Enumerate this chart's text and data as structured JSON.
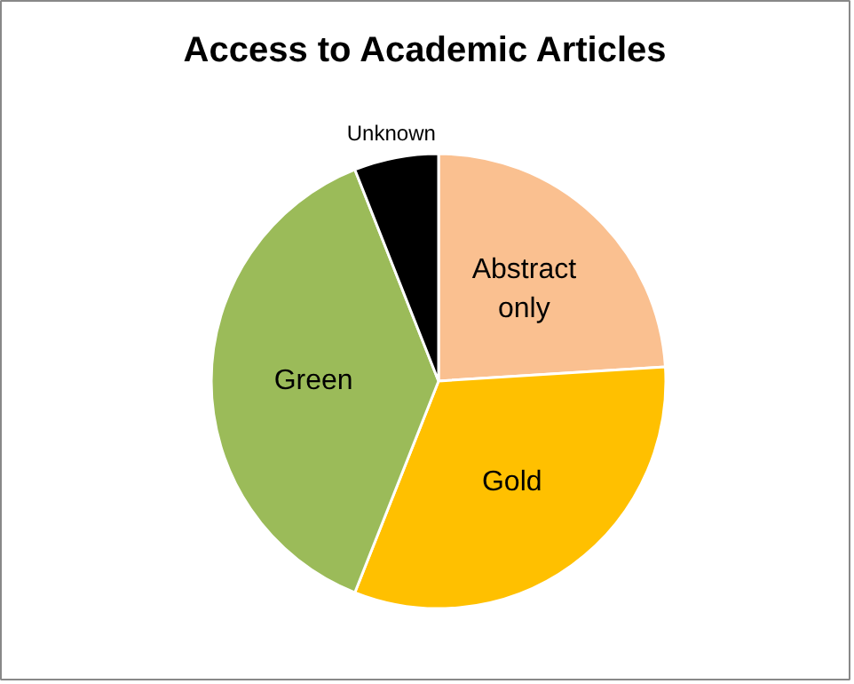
{
  "chart_data": {
    "type": "pie",
    "title": "Access to Academic Articles",
    "categories": [
      "Abstract only",
      "Gold",
      "Green",
      "Unknown"
    ],
    "values": [
      24,
      32,
      38,
      6
    ],
    "colors": [
      "#fac090",
      "#ffc000",
      "#9bbb59",
      "#000000"
    ]
  }
}
